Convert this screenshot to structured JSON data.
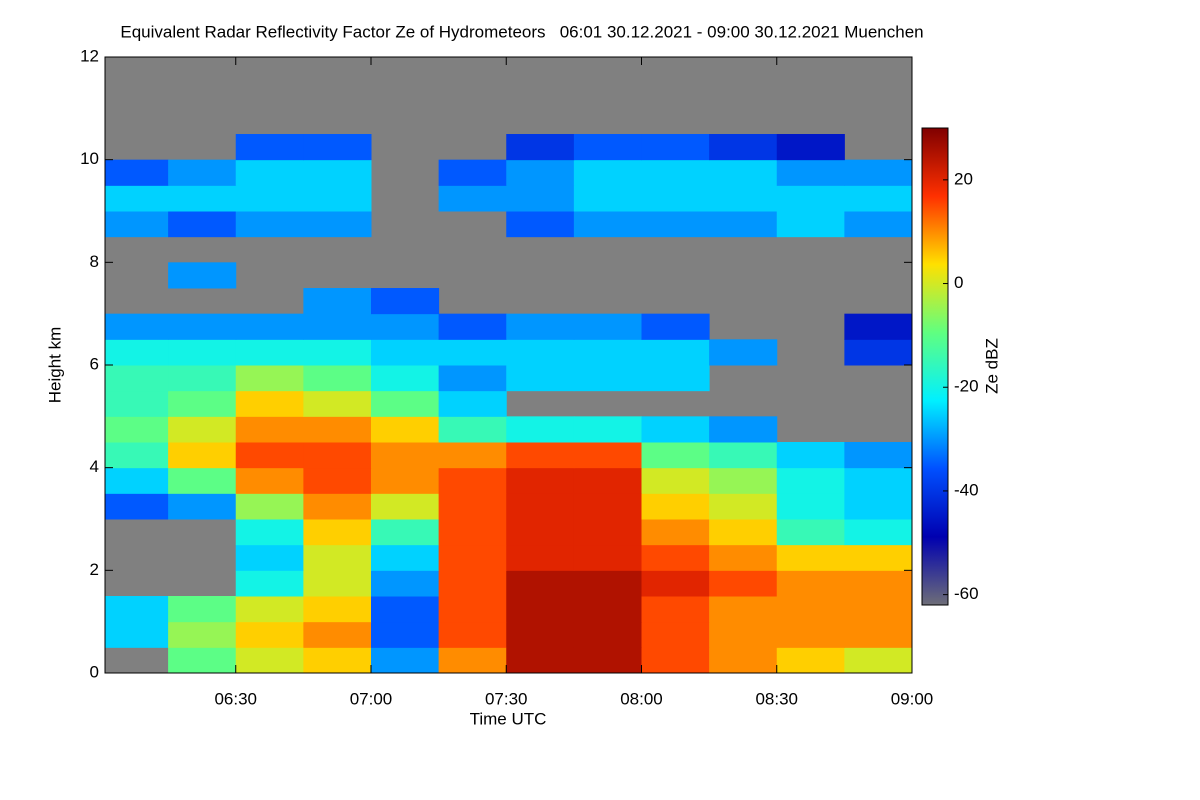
{
  "chart_data": {
    "type": "heatmap",
    "title": "Equivalent Radar Reflectivity Factor Ze of Hydrometeors   06:01 30.12.2021 - 09:00 30.12.2021 Muenchen",
    "xlabel": "Time UTC",
    "ylabel": "Height km",
    "colorbar_label": "Ze dBZ",
    "x": [
      0,
      15,
      30,
      45,
      60,
      75,
      90,
      105,
      120,
      135,
      150,
      165,
      180
    ],
    "y": [
      0,
      0.5,
      1,
      1.5,
      2,
      2.5,
      3,
      3.5,
      4,
      4.5,
      5,
      5.5,
      6,
      6.5,
      7,
      7.5,
      8,
      8.5,
      9,
      9.5,
      10,
      10.5,
      11,
      11.5,
      12
    ],
    "xlim": [
      1,
      180
    ],
    "xticks": [
      {
        "value": 30,
        "label": "06:30"
      },
      {
        "value": 60,
        "label": "07:00"
      },
      {
        "value": 90,
        "label": "07:30"
      },
      {
        "value": 120,
        "label": "08:00"
      },
      {
        "value": 150,
        "label": "08:30"
      },
      {
        "value": 180,
        "label": "09:00"
      }
    ],
    "ylim": [
      0,
      12
    ],
    "yticks": [
      0,
      2,
      4,
      6,
      8,
      10,
      12
    ],
    "zlim": [
      -62,
      30
    ],
    "zticks": [
      -60,
      -40,
      -20,
      0,
      20
    ],
    "background": "#808080",
    "colors": [
      "#6e6e78",
      "#0000b0",
      "#0050ff",
      "#00f0ff",
      "#60ff80",
      "#ffe000",
      "#ff3000",
      "#800000"
    ],
    "values": [
      [
        null,
        -10,
        0,
        5,
        -30,
        10,
        25,
        25,
        15,
        10,
        5,
        0
      ],
      [
        -25,
        -5,
        5,
        10,
        -35,
        15,
        25,
        25,
        15,
        10,
        10,
        10
      ],
      [
        -25,
        -10,
        0,
        5,
        -35,
        15,
        25,
        25,
        15,
        10,
        10,
        10
      ],
      [
        null,
        null,
        -20,
        0,
        -30,
        15,
        25,
        25,
        20,
        15,
        10,
        10
      ],
      [
        null,
        null,
        -25,
        0,
        -25,
        15,
        20,
        20,
        15,
        10,
        5,
        5
      ],
      [
        null,
        null,
        -20,
        5,
        -15,
        15,
        20,
        20,
        10,
        5,
        -15,
        -20
      ],
      [
        -35,
        -30,
        -5,
        10,
        0,
        15,
        20,
        20,
        5,
        0,
        -20,
        -25
      ],
      [
        -25,
        -10,
        10,
        15,
        10,
        15,
        20,
        20,
        0,
        -5,
        -20,
        -25
      ],
      [
        -15,
        5,
        15,
        15,
        10,
        10,
        15,
        15,
        -10,
        -15,
        -25,
        -30
      ],
      [
        -10,
        0,
        10,
        10,
        5,
        -15,
        -20,
        -20,
        -25,
        -30,
        null,
        null
      ],
      [
        -15,
        -10,
        5,
        0,
        -10,
        -25,
        null,
        null,
        null,
        null,
        null,
        null
      ],
      [
        -15,
        -15,
        -5,
        -10,
        -20,
        -30,
        -25,
        -25,
        -25,
        null,
        null,
        null
      ],
      [
        -20,
        -20,
        -20,
        -20,
        -25,
        -25,
        -25,
        -25,
        -25,
        -30,
        null,
        -40
      ],
      [
        -30,
        -30,
        -30,
        -30,
        -30,
        -35,
        -30,
        -30,
        -35,
        null,
        null,
        -45
      ],
      [
        null,
        null,
        null,
        -30,
        -35,
        null,
        null,
        null,
        null,
        null,
        null,
        null
      ],
      [
        null,
        -30,
        null,
        null,
        null,
        null,
        null,
        null,
        null,
        null,
        null,
        null
      ],
      [
        null,
        null,
        null,
        null,
        null,
        null,
        null,
        null,
        null,
        null,
        null,
        null
      ],
      [
        -30,
        -35,
        -30,
        -30,
        null,
        null,
        -35,
        -30,
        -30,
        -30,
        -25,
        -30
      ],
      [
        -25,
        -25,
        -25,
        -25,
        null,
        -30,
        -30,
        -25,
        -25,
        -25,
        -25,
        -25
      ],
      [
        -35,
        -30,
        -25,
        -25,
        null,
        -35,
        -30,
        -25,
        -25,
        -25,
        -30,
        -30
      ],
      [
        null,
        null,
        -35,
        -35,
        null,
        null,
        -40,
        -35,
        -35,
        -40,
        -45,
        null
      ],
      [
        null,
        null,
        null,
        null,
        null,
        null,
        null,
        null,
        null,
        null,
        null,
        null
      ],
      [
        null,
        null,
        null,
        null,
        null,
        null,
        null,
        null,
        null,
        null,
        null,
        null
      ],
      [
        null,
        null,
        null,
        null,
        null,
        null,
        null,
        null,
        null,
        null,
        null,
        null
      ]
    ]
  }
}
